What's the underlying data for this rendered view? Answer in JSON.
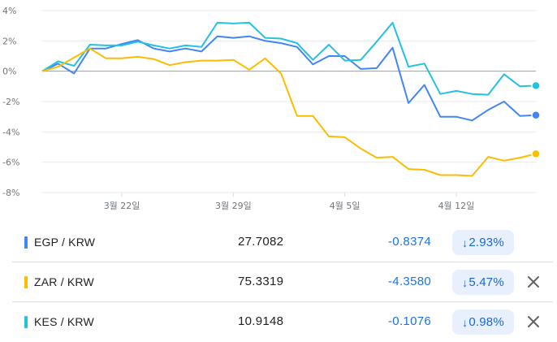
{
  "chart_data": {
    "type": "line",
    "ylim": [
      -8,
      4
    ],
    "y_ticks": [
      4,
      2,
      0,
      -2,
      -4,
      -6,
      -8
    ],
    "y_tick_labels": [
      "4%",
      "2%",
      "0%",
      "-2%",
      "-4%",
      "-6%",
      "-8%"
    ],
    "x_ticks": [
      5,
      12,
      19,
      26
    ],
    "x_tick_labels": [
      "3월 22일",
      "3월 29일",
      "4월 5일",
      "4월 12일"
    ],
    "grid": "horizontal",
    "series": [
      {
        "name": "EGP / KRW",
        "color": "#4285f4",
        "values": [
          0,
          0.5,
          -0.15,
          1.5,
          1.5,
          1.8,
          2.05,
          1.5,
          1.3,
          1.5,
          1.3,
          2.3,
          2.2,
          2.3,
          2.0,
          1.85,
          1.6,
          0.45,
          1.0,
          1.0,
          0.15,
          0.2,
          1.55,
          -2.1,
          -0.9,
          -3.0,
          -3.0,
          -3.25,
          -2.55,
          -2.0,
          -2.95,
          -2.9
        ]
      },
      {
        "name": "ZAR / KRW",
        "color": "#fbbc04",
        "values": [
          0,
          0.3,
          0.9,
          1.5,
          0.85,
          0.85,
          0.95,
          0.8,
          0.4,
          0.6,
          0.7,
          0.7,
          0.75,
          0.1,
          0.85,
          -0.15,
          -2.95,
          -2.95,
          -4.3,
          -4.35,
          -5.1,
          -5.7,
          -5.65,
          -6.45,
          -6.5,
          -6.85,
          -6.85,
          -6.9,
          -5.65,
          -5.9,
          -5.7,
          -5.45
        ]
      },
      {
        "name": "KES / KRW",
        "color": "#24c1e0",
        "values": [
          0,
          0.65,
          0.35,
          1.75,
          1.7,
          1.7,
          1.95,
          1.7,
          1.5,
          1.7,
          1.6,
          3.2,
          3.15,
          3.2,
          2.2,
          2.15,
          1.85,
          0.75,
          1.75,
          0.7,
          0.75,
          1.95,
          3.2,
          0.3,
          0.5,
          -1.5,
          -1.3,
          -1.5,
          -1.55,
          -0.2,
          -1.0,
          -0.95
        ]
      }
    ]
  },
  "rows": [
    {
      "pair": "EGP / KRW",
      "rate": "27.7082",
      "change": "-0.8374",
      "percent": "2.93%",
      "arrow": "↓",
      "color": "#4285f4",
      "removable": false
    },
    {
      "pair": "ZAR / KRW",
      "rate": "75.3319",
      "change": "-4.3580",
      "percent": "5.47%",
      "arrow": "↓",
      "color": "#fbbc04",
      "removable": true
    },
    {
      "pair": "KES / KRW",
      "rate": "10.9148",
      "change": "-0.1076",
      "percent": "0.98%",
      "arrow": "↓",
      "color": "#24c1e0",
      "removable": true
    }
  ],
  "icons": {
    "remove": "close-icon",
    "down": "arrow-down-icon"
  }
}
